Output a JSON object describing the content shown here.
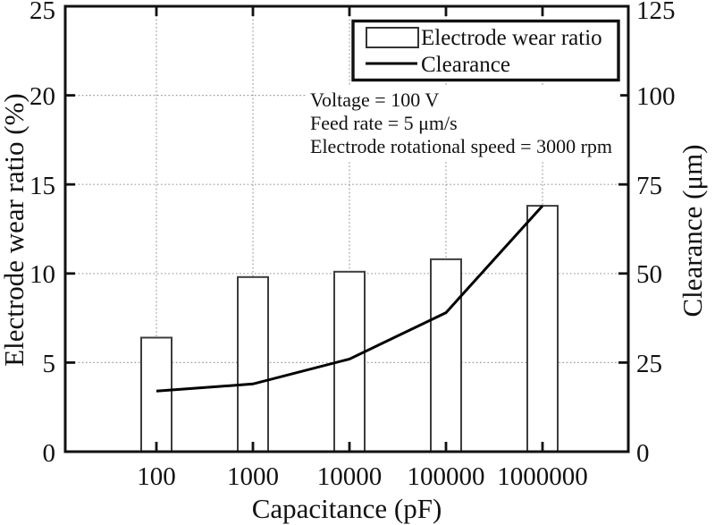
{
  "chart_data": {
    "type": "combo-bar-line",
    "title": "",
    "categories": [
      "100",
      "1000",
      "10000",
      "100000",
      "1000000"
    ],
    "x_axis": {
      "label": "Capacitance (pF)",
      "scale": "log"
    },
    "y_axis_left": {
      "label": "Electrode wear ratio (%)",
      "min": 0,
      "max": 25,
      "ticks": [
        0,
        5,
        10,
        15,
        20,
        25
      ]
    },
    "y_axis_right": {
      "label": "Clearance (μm)",
      "min": 0,
      "max": 125,
      "ticks": [
        0,
        25,
        50,
        75,
        100,
        125
      ]
    },
    "series": [
      {
        "name": "Electrode wear ratio",
        "type": "bar",
        "axis": "left",
        "values": [
          6.4,
          9.8,
          10.1,
          10.8,
          13.8
        ],
        "fill": "#ffffff",
        "stroke": "#3d3d3d"
      },
      {
        "name": "Clearance",
        "type": "line",
        "axis": "right",
        "values": [
          17,
          19,
          26,
          39,
          69
        ],
        "color": "#000000"
      }
    ],
    "annotations": [
      "Voltage = 100 V",
      "Feed rate = 5 μm/s",
      "Electrode rotational speed = 3000 rpm"
    ],
    "legend": {
      "position": "top-right",
      "items": [
        "Electrode wear ratio",
        "Clearance"
      ]
    },
    "grid": {
      "show": true,
      "style": "dotted",
      "color": "#9b9b9b"
    }
  },
  "colors": {
    "background": "#ffffff",
    "frame": "#111111",
    "text": "#111111"
  }
}
